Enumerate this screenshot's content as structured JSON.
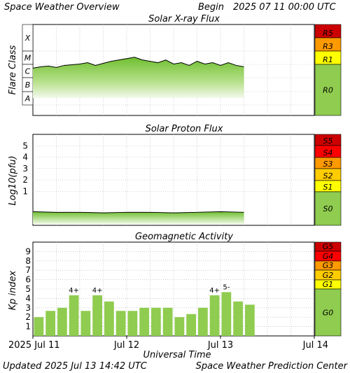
{
  "header": {
    "title": "Space Weather Overview",
    "begin_label": "Begin",
    "begin_date": "2025 07 11 00:00 UTC"
  },
  "footer": {
    "updated_label": "Updated",
    "updated_date": "2025 Jul 13 14:42 UTC",
    "center": "Space Weather Prediction Center"
  },
  "time_axis": {
    "label": "Universal Time",
    "ticks": [
      "2025 Jul 11",
      "Jul 12",
      "Jul 13",
      "Jul 14"
    ],
    "range_hours": [
      0,
      72
    ]
  },
  "colors": {
    "fill_light": "#eaf6da",
    "fill_dark": "#8ece4e",
    "bar": "#8fcc4f",
    "scale_r5": "#cc0000",
    "scale_r4": "#ff0000",
    "scale_r3": "#ff9900",
    "scale_r2": "#ffcc00",
    "scale_r1": "#ffff00",
    "scale_none": "#8fcc4f"
  },
  "chart_data": [
    {
      "type": "area",
      "title": "Solar X-ray Flux",
      "ylabel": "Flare Class",
      "y_classes": [
        "X",
        "M",
        "C",
        "B",
        "A"
      ],
      "scale_labels": [
        "R5",
        "R3",
        "R1",
        "R0"
      ],
      "x_hours": [
        0,
        2,
        4,
        6,
        8,
        10,
        12,
        14,
        16,
        18,
        20,
        22,
        24,
        26,
        28,
        30,
        32,
        34,
        36,
        38,
        40,
        42,
        44,
        46,
        48,
        50,
        52,
        54
      ],
      "class_level": [
        2.7,
        2.8,
        2.85,
        2.75,
        2.9,
        2.95,
        3.0,
        3.1,
        2.9,
        3.05,
        3.2,
        3.3,
        3.4,
        3.5,
        3.3,
        3.2,
        3.1,
        3.3,
        3.0,
        3.1,
        2.9,
        3.2,
        3.0,
        3.1,
        2.9,
        3.1,
        2.9,
        2.8
      ],
      "ylim": [
        0,
        5
      ]
    },
    {
      "type": "area",
      "title": "Solar Proton Flux",
      "ylabel": "Log10(pfu)",
      "yticks": [
        "5",
        "4",
        "3",
        "2",
        "1"
      ],
      "scale_labels": [
        "S5",
        "S4",
        "S3",
        "S2",
        "S1",
        "S0"
      ],
      "x_hours": [
        0,
        6,
        12,
        18,
        24,
        30,
        36,
        42,
        48,
        54
      ],
      "log_pfu": [
        -0.8,
        -0.85,
        -0.85,
        -0.9,
        -0.85,
        -0.85,
        -0.9,
        -0.85,
        -0.8,
        -0.85
      ],
      "ylim": [
        -2,
        6
      ]
    },
    {
      "type": "bar",
      "title": "Geomagnetic Activity",
      "ylabel": "Kp index",
      "yticks": [
        "9",
        "8",
        "7",
        "6",
        "5",
        "4",
        "3",
        "2",
        "1"
      ],
      "scale_labels": [
        "G5",
        "G4",
        "G3",
        "G2",
        "G1",
        "G0"
      ],
      "ylim": [
        0,
        10
      ],
      "values": [
        2.0,
        2.67,
        3.0,
        4.33,
        2.67,
        4.33,
        3.67,
        2.67,
        2.67,
        3.0,
        3.0,
        3.0,
        2.0,
        2.33,
        3.0,
        4.33,
        4.67,
        3.67,
        3.33
      ],
      "labels": [
        "",
        "",
        "",
        "4+",
        "",
        "4+",
        "",
        "",
        "",
        "",
        "",
        "",
        "",
        "",
        "",
        "4+",
        "5-",
        "",
        ""
      ]
    }
  ]
}
